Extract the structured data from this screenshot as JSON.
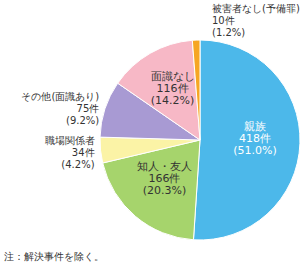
{
  "chart_data": {
    "type": "pie",
    "categories": [
      "親族",
      "知人・友人",
      "職場関係者",
      "その他(面識あり)",
      "面識なし",
      "被害者なし(予備罪)"
    ],
    "values": [
      418,
      166,
      34,
      75,
      116,
      10
    ],
    "value_labels": [
      "418件",
      "166件",
      "34件",
      "75件",
      "116件",
      "10件"
    ],
    "percent_labels": [
      "(51.0%)",
      "(20.3%)",
      "(4.2%)",
      "(9.2%)",
      "(14.2%)",
      "(1.2%)"
    ],
    "colors": [
      "#4cb8ea",
      "#a6d46c",
      "#fbf3a6",
      "#a89ad3",
      "#f7b8c6",
      "#f6a623"
    ],
    "note": "注：解決事件を除く。"
  }
}
